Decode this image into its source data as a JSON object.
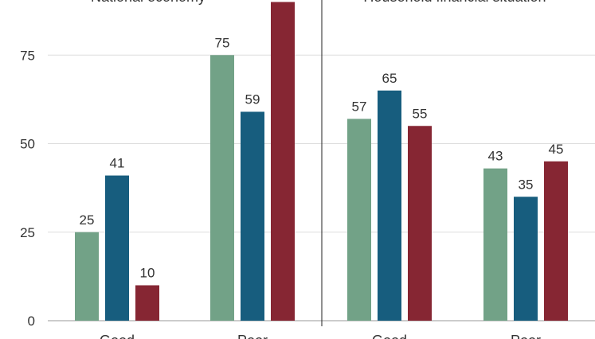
{
  "chart_data": {
    "type": "bar",
    "ylim": [
      0,
      90
    ],
    "yticks": [
      0,
      25,
      50,
      75
    ],
    "grid": true,
    "colors": [
      "#72a287",
      "#175d7e",
      "#862633"
    ],
    "series": [
      {
        "values": [
          25,
          75,
          57,
          43
        ]
      },
      {
        "values": [
          41,
          59,
          65,
          35
        ]
      },
      {
        "values": [
          10,
          90,
          55,
          45
        ]
      }
    ],
    "data_labels": [
      [
        "25",
        "75",
        "57",
        "43"
      ],
      [
        "41",
        "59",
        "65",
        "35"
      ],
      [
        "10",
        "",
        "55",
        "45"
      ]
    ],
    "panels": [
      {
        "title": "National economy",
        "categories": [
          "Good",
          "Poor"
        ]
      },
      {
        "title": "Household financial situation",
        "categories": [
          "Good",
          "Poor"
        ]
      }
    ]
  }
}
